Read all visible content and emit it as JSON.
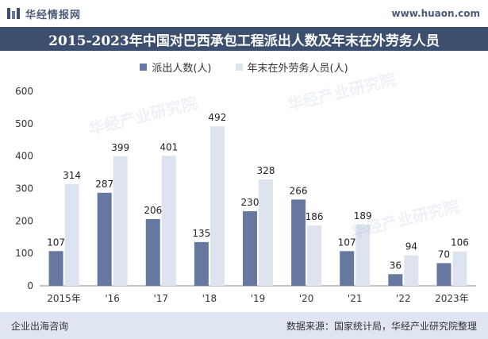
{
  "header": {
    "brand_name": "华经情报网",
    "site_url": "www.huaon.com",
    "logo_icon": "huajing-logo-icon"
  },
  "title": "2015-2023年中国对巴西承包工程派出人数及年末在外劳务人员",
  "footer": {
    "left": "企业出海咨询",
    "right": "数据来源：国家统计局，华经产业研究院整理"
  },
  "watermark_text": "华经产业研究院",
  "colors": {
    "series1": "#6678a0",
    "series2": "#dde3ef",
    "title_bg": "#3d4f6e",
    "footer_bg": "#dfe6f1"
  },
  "chart_data": {
    "type": "bar",
    "categories": [
      "2015年",
      "'16",
      "'17",
      "'18",
      "'19",
      "'20",
      "'21",
      "'22",
      "2023年"
    ],
    "series": [
      {
        "name": "派出人数(人)",
        "values": [
          107,
          287,
          206,
          135,
          230,
          266,
          107,
          36,
          70
        ]
      },
      {
        "name": "年末在外劳务人员(人)",
        "values": [
          314,
          399,
          401,
          492,
          328,
          186,
          189,
          94,
          106
        ]
      }
    ],
    "yticks": [
      0,
      100,
      200,
      300,
      400,
      500,
      600
    ],
    "ylim": [
      0,
      600
    ],
    "grid": false,
    "legend_position": "top-center"
  }
}
